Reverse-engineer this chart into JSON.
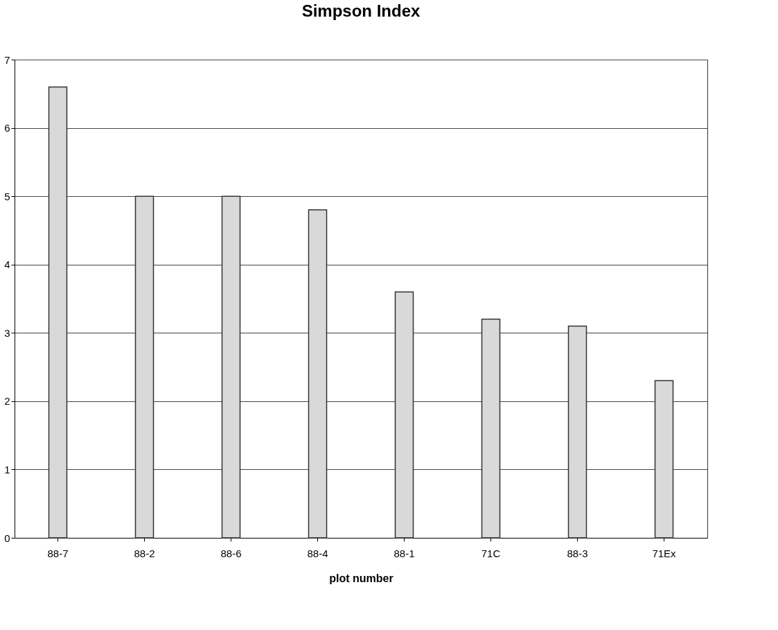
{
  "chart_data": {
    "type": "bar",
    "title": "Simpson Index",
    "xlabel": "plot number",
    "categories": [
      "88-7",
      "88-2",
      "88-6",
      "88-4",
      "88-1",
      "71C",
      "88-3",
      "71Ex"
    ],
    "values": [
      6.6,
      5.0,
      5.0,
      4.8,
      3.6,
      3.2,
      3.1,
      2.3
    ],
    "color": "#d9d9d9",
    "ylim": [
      0,
      7
    ],
    "yticks": [
      0,
      1,
      2,
      3,
      4,
      5,
      6,
      7
    ],
    "grid": "y"
  }
}
